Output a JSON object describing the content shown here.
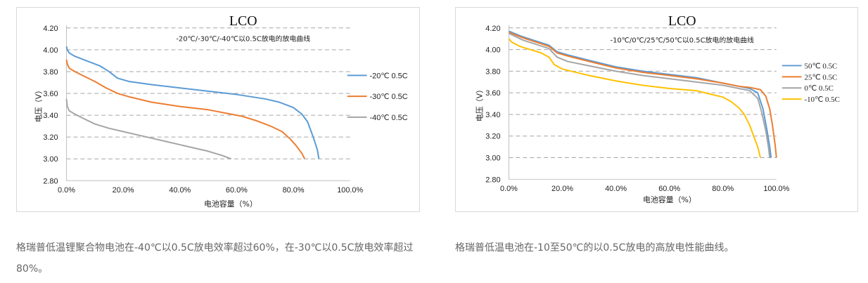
{
  "chart_data": [
    {
      "type": "line",
      "title": "LCO",
      "subtitle": "-20℃/-30℃/-40℃以0.5C放电的放电曲线",
      "xlabel": "电池容量（%）",
      "ylabel": "电压（V）",
      "xlim": [
        0,
        100
      ],
      "ylim": [
        2.8,
        4.2
      ],
      "x_ticks": [
        "0.0%",
        "20.0%",
        "40.0%",
        "60.0%",
        "80.0%",
        "100.0%"
      ],
      "y_ticks": [
        "2.80",
        "3.00",
        "3.20",
        "3.40",
        "3.60",
        "3.80",
        "4.00",
        "4.20"
      ],
      "grid": "horizontal dashed",
      "legend_position": "right",
      "series": [
        {
          "name": "-20℃ 0.5C",
          "color": "#5b9bd5",
          "x": [
            0,
            0.3,
            1,
            3,
            6,
            10,
            12,
            15,
            18,
            22,
            30,
            40,
            50,
            60,
            70,
            75,
            80,
            83,
            85,
            87,
            88.5,
            89
          ],
          "y": [
            4.03,
            4.0,
            3.97,
            3.94,
            3.91,
            3.87,
            3.85,
            3.8,
            3.74,
            3.71,
            3.68,
            3.65,
            3.62,
            3.59,
            3.55,
            3.52,
            3.47,
            3.41,
            3.34,
            3.2,
            3.08,
            3.0
          ]
        },
        {
          "name": "-30℃ 0.5C",
          "color": "#ed7d31",
          "x": [
            0,
            0.3,
            1,
            3,
            6,
            10,
            14,
            18,
            22,
            30,
            40,
            50,
            56,
            62,
            67,
            72,
            76,
            79,
            81,
            83,
            84
          ],
          "y": [
            3.91,
            3.87,
            3.83,
            3.8,
            3.76,
            3.71,
            3.65,
            3.6,
            3.57,
            3.52,
            3.48,
            3.45,
            3.42,
            3.39,
            3.35,
            3.3,
            3.25,
            3.18,
            3.12,
            3.05,
            3.0
          ]
        },
        {
          "name": "-40℃ 0.5C",
          "color": "#a5a5a5",
          "x": [
            0,
            0.3,
            1,
            3,
            6,
            10,
            15,
            20,
            25,
            30,
            35,
            40,
            45,
            50,
            55,
            58
          ],
          "y": [
            3.55,
            3.48,
            3.44,
            3.41,
            3.37,
            3.32,
            3.28,
            3.25,
            3.22,
            3.19,
            3.16,
            3.13,
            3.1,
            3.07,
            3.03,
            3.0
          ]
        }
      ]
    },
    {
      "type": "line",
      "title": "LCO",
      "subtitle": "-10℃/0℃/25℃/50℃以0.5C放电的放电曲线",
      "xlabel": "电池容量（%）",
      "ylabel": "电压（V）",
      "xlim": [
        0,
        100
      ],
      "ylim": [
        2.8,
        4.2
      ],
      "x_ticks": [
        "0.0%",
        "20.0%",
        "40.0%",
        "60.0%",
        "80.0%",
        "100.0%"
      ],
      "y_ticks": [
        "2.80",
        "3.00",
        "3.20",
        "3.40",
        "3.60",
        "3.80",
        "4.00",
        "4.20"
      ],
      "grid": "horizontal dashed",
      "legend_position": "right",
      "series": [
        {
          "name": "50℃  0.5C",
          "color": "#5b9bd5",
          "x": [
            0,
            5,
            10,
            15,
            18,
            22,
            30,
            40,
            50,
            60,
            70,
            80,
            86,
            90,
            93,
            95,
            96.5,
            97.5,
            98
          ],
          "y": [
            4.17,
            4.12,
            4.08,
            4.04,
            3.98,
            3.95,
            3.9,
            3.84,
            3.8,
            3.77,
            3.74,
            3.69,
            3.66,
            3.64,
            3.6,
            3.45,
            3.25,
            3.1,
            3.0
          ]
        },
        {
          "name": "25℃  0.5C",
          "color": "#ed7d31",
          "x": [
            0,
            5,
            10,
            15,
            18,
            22,
            30,
            40,
            50,
            60,
            70,
            80,
            86,
            90,
            94,
            96,
            97.5,
            98.5,
            99.5,
            100
          ],
          "y": [
            4.16,
            4.11,
            4.07,
            4.03,
            3.97,
            3.94,
            3.89,
            3.83,
            3.79,
            3.76,
            3.73,
            3.69,
            3.66,
            3.65,
            3.63,
            3.57,
            3.45,
            3.3,
            3.12,
            3.0
          ]
        },
        {
          "name": "0℃  0.5C",
          "color": "#a5a5a5",
          "x": [
            0,
            5,
            10,
            15,
            18,
            22,
            30,
            40,
            50,
            60,
            70,
            80,
            86,
            90,
            93,
            94.5,
            96,
            97,
            97.5
          ],
          "y": [
            4.15,
            4.09,
            4.05,
            4.01,
            3.93,
            3.89,
            3.85,
            3.8,
            3.76,
            3.73,
            3.7,
            3.67,
            3.64,
            3.62,
            3.55,
            3.42,
            3.25,
            3.1,
            3.0
          ]
        },
        {
          "name": "-10℃  0.5C",
          "color": "#ffc000",
          "x": [
            0,
            1,
            4,
            8,
            12,
            15,
            17,
            20,
            25,
            30,
            40,
            50,
            60,
            70,
            75,
            80,
            83,
            86,
            88,
            90,
            91.5,
            93,
            94
          ],
          "y": [
            4.1,
            4.07,
            4.03,
            4.0,
            3.97,
            3.93,
            3.86,
            3.82,
            3.79,
            3.76,
            3.71,
            3.67,
            3.64,
            3.62,
            3.59,
            3.56,
            3.52,
            3.46,
            3.4,
            3.3,
            3.2,
            3.1,
            3.0
          ]
        }
      ]
    }
  ],
  "captions": {
    "left": "格瑞普低温锂聚合物电池在-40℃以0.5C放电效率超过60%，在-30℃以0.5C放电效率超过80%。",
    "right": "格瑞普低温电池在-10至50℃的以0.5C放电的高放电性能曲线。"
  }
}
